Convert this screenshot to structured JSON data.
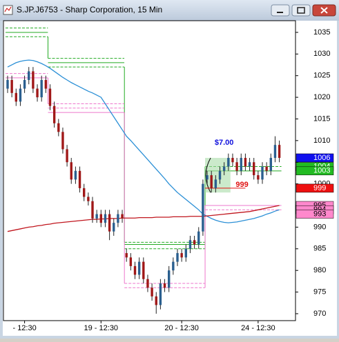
{
  "chart_data": {
    "type": "candlestick",
    "title": "S.JP.J6753 - Sharp Corporation, 15 Min",
    "ylim": [
      968.4,
      1037.7
    ],
    "yticks": [
      970,
      975,
      980,
      985,
      990,
      995,
      1000,
      1005,
      1010,
      1015,
      1020,
      1025,
      1030,
      1035
    ],
    "xticks": [
      {
        "value": 4,
        "label": "- 12:30"
      },
      {
        "value": 22,
        "label": "19 - 12:30"
      },
      {
        "value": 41,
        "label": "20 - 12:30"
      },
      {
        "value": 59,
        "label": "24 - 12:30"
      }
    ],
    "up_color": "#2a5f8f",
    "down_color": "#a01818",
    "candles": {
      "open": [
        1022,
        1024,
        1021,
        1019,
        1022,
        1024,
        1026,
        1022,
        1020,
        1024,
        1022,
        1018,
        1014,
        1012,
        1008,
        1005,
        1001,
        1003,
        999,
        997,
        996,
        992,
        993,
        991,
        993,
        989,
        991,
        993,
        984,
        983,
        981,
        979,
        982,
        978,
        976,
        974,
        972,
        977,
        976,
        980,
        982,
        984,
        983,
        985,
        987,
        986,
        989,
        1001,
        1002,
        999,
        1001,
        1003,
        1004,
        1006,
        1005,
        1003,
        1006,
        1004,
        1005,
        1002,
        1001,
        1004,
        1003,
        1006,
        1009
      ],
      "high": [
        1025,
        1025,
        1022,
        1023,
        1025,
        1027,
        1027,
        1023,
        1025,
        1025,
        1023,
        1019,
        1015,
        1013,
        1009,
        1006,
        1004,
        1004,
        1000,
        998,
        997,
        994,
        994,
        994,
        994,
        992,
        994,
        994,
        985,
        984,
        982,
        983,
        983,
        979,
        977,
        975,
        978,
        978,
        981,
        983,
        985,
        985,
        986,
        988,
        988,
        990,
        1001,
        1003,
        1003,
        1002,
        1004,
        1005,
        1007,
        1007,
        1006,
        1007,
        1007,
        1006,
        1006,
        1003,
        1005,
        1005,
        1007,
        1011,
        1010
      ],
      "low": [
        1021,
        1020,
        1018,
        1018,
        1021,
        1023,
        1021,
        1019,
        1019,
        1021,
        1017,
        1013,
        1011,
        1007,
        1004,
        1000,
        1000,
        998,
        996,
        995,
        991,
        991,
        990,
        990,
        987,
        988,
        990,
        991,
        982,
        980,
        978,
        978,
        977,
        975,
        973,
        970,
        971,
        975,
        975,
        979,
        981,
        982,
        982,
        984,
        985,
        985,
        988,
        1000,
        998,
        998,
        1000,
        1002,
        1003,
        1004,
        1002,
        1002,
        1003,
        1003,
        1001,
        1000,
        1000,
        1002,
        1002,
        1005,
        1005
      ],
      "close": [
        1024,
        1021,
        1019,
        1022,
        1024,
        1026,
        1022,
        1020,
        1024,
        1022,
        1018,
        1014,
        1012,
        1008,
        1005,
        1001,
        1003,
        999,
        997,
        996,
        992,
        993,
        991,
        993,
        989,
        991,
        993,
        992,
        983,
        981,
        979,
        982,
        978,
        976,
        974,
        972,
        977,
        976,
        980,
        982,
        984,
        983,
        985,
        987,
        986,
        989,
        1000,
        1002,
        999,
        1001,
        1003,
        1004,
        1006,
        1005,
        1003,
        1006,
        1004,
        1005,
        1002,
        1001,
        1004,
        1003,
        1006,
        1009,
        1006
      ]
    },
    "ma": [
      {
        "color": "#2a8fd6",
        "values": [
          1027,
          1027.5,
          1028,
          1028.3,
          1028.5,
          1028.6,
          1028.5,
          1028.2,
          1027.8,
          1027.3,
          1026.7,
          1026,
          1025.3,
          1024.6,
          1024,
          1023.4,
          1022.9,
          1022.4,
          1021.9,
          1021.4,
          1021,
          1020.5,
          1020,
          1018.5,
          1017,
          1015.5,
          1014,
          1012.5,
          1011,
          1010,
          1008.9,
          1007.8,
          1006.7,
          1005.6,
          1004.5,
          1003.4,
          1002.3,
          1001.2,
          1000,
          999,
          998,
          997.2,
          996.4,
          995.6,
          994.8,
          994,
          993,
          992.5,
          992,
          991.6,
          991.3,
          991.1,
          991,
          991.1,
          991.2,
          991.4,
          991.6,
          991.8,
          992,
          992.3,
          992.6,
          993,
          993.3,
          993.7,
          994
        ]
      },
      {
        "color": "#c0141c",
        "values": [
          989,
          989.2,
          989.4,
          989.6,
          989.8,
          990,
          990.1,
          990.3,
          990.4,
          990.6,
          990.7,
          990.9,
          991,
          991.1,
          991.2,
          991.3,
          991.4,
          991.5,
          991.6,
          991.7,
          991.8,
          991.8,
          991.9,
          991.9,
          992,
          992,
          992,
          992.1,
          992.1,
          992.1,
          992.1,
          992.2,
          992.2,
          992.2,
          992.2,
          992.3,
          992.3,
          992.3,
          992.3,
          992.4,
          992.4,
          992.4,
          992.4,
          992.5,
          992.5,
          992.5,
          992.5,
          992.6,
          992.7,
          992.8,
          992.9,
          993,
          993.1,
          993.2,
          993.3,
          993.4,
          993.5,
          993.6,
          993.8,
          994,
          994.2,
          994.4,
          994.6,
          994.8,
          995
        ]
      }
    ],
    "levels": [
      {
        "color": "#22aa22",
        "segments": [
          [
            0,
            9,
            1036
          ],
          [
            0,
            9,
            1035
          ],
          [
            0,
            9,
            1034
          ],
          [
            10,
            27,
            1029
          ],
          [
            10,
            27,
            1028
          ],
          [
            10,
            27,
            1027
          ],
          [
            28,
            46,
            986.5
          ],
          [
            28,
            46,
            986
          ],
          [
            28,
            46,
            985
          ],
          [
            47,
            64,
            1004
          ],
          [
            47,
            64,
            1003
          ]
        ]
      },
      {
        "color": "#ee77cc",
        "segments": [
          [
            0,
            9,
            1025.5
          ],
          [
            0,
            9,
            1024.5
          ],
          [
            10,
            27,
            1018.5
          ],
          [
            10,
            27,
            1017.5
          ],
          [
            10,
            27,
            1016.5
          ],
          [
            28,
            46,
            977
          ],
          [
            28,
            46,
            976
          ],
          [
            47,
            64,
            995
          ],
          [
            47,
            64,
            994
          ]
        ]
      }
    ],
    "trade": {
      "start": 47,
      "end": 52,
      "low": 998,
      "high": 1006,
      "label": "$7.00",
      "label_index": 51,
      "label_price": 1009.5,
      "stop": 999,
      "stop_end": 56
    },
    "price_labels": [
      {
        "value": 1006,
        "color": "#1010ee"
      },
      {
        "value": 1004,
        "color": "#22bb22"
      },
      {
        "value": 1003,
        "color": "#22bb22"
      },
      {
        "value": 999,
        "color": "#ee1010"
      },
      {
        "value": 995,
        "color": "#ff88cc"
      },
      {
        "value": 994,
        "color": "#ff88cc"
      },
      {
        "value": 993,
        "color": "#ff88cc"
      }
    ]
  }
}
